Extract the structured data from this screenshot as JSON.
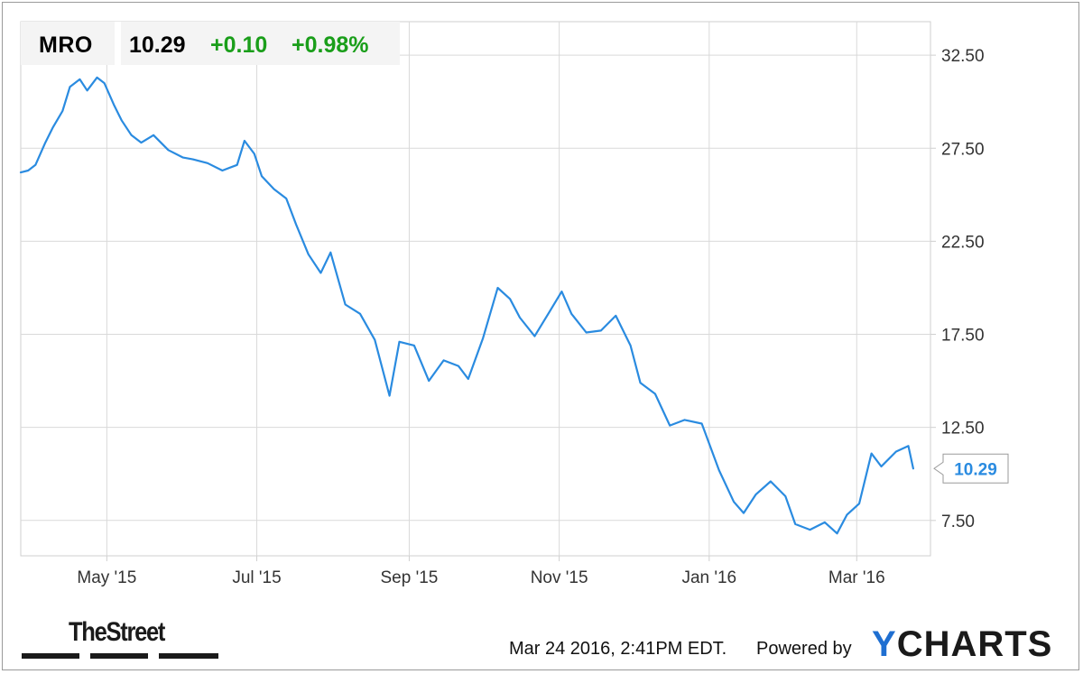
{
  "quote": {
    "ticker": "MRO",
    "price": "10.29",
    "change": "+0.10",
    "change_pct": "+0.98%",
    "up_color": "#1a9e1a"
  },
  "chart_data": {
    "type": "line",
    "title": "",
    "xlabel": "",
    "ylabel": "",
    "ylim": [
      5.6,
      34.3
    ],
    "y_ticks": [
      7.5,
      12.5,
      17.5,
      22.5,
      27.5,
      32.5
    ],
    "y_tick_labels": [
      "7.50",
      "12.50",
      "17.50",
      "22.50",
      "27.50",
      "32.50"
    ],
    "x_ticks": [
      "2015-05-01",
      "2015-07-01",
      "2015-09-01",
      "2015-11-01",
      "2016-01-01",
      "2016-03-01"
    ],
    "x_tick_labels": [
      "May '15",
      "Jul '15",
      "Sep '15",
      "Nov '15",
      "Jan '16",
      "Mar '16"
    ],
    "xlim": [
      "2015-03-27",
      "2016-03-31"
    ],
    "grid": true,
    "line_color": "#2a8be0",
    "last_value_label": "10.29",
    "series": [
      {
        "x": [
          "2015-03-27",
          "2015-03-30",
          "2015-04-02",
          "2015-04-06",
          "2015-04-09",
          "2015-04-13",
          "2015-04-16",
          "2015-04-20",
          "2015-04-23",
          "2015-04-27",
          "2015-04-30",
          "2015-05-04",
          "2015-05-07",
          "2015-05-11",
          "2015-05-15",
          "2015-05-20",
          "2015-05-26",
          "2015-06-01",
          "2015-06-05",
          "2015-06-11",
          "2015-06-17",
          "2015-06-23",
          "2015-06-26",
          "2015-06-30",
          "2015-07-03",
          "2015-07-08",
          "2015-07-13",
          "2015-07-17",
          "2015-07-22",
          "2015-07-27",
          "2015-07-31",
          "2015-08-06",
          "2015-08-12",
          "2015-08-18",
          "2015-08-24",
          "2015-08-28",
          "2015-09-03",
          "2015-09-09",
          "2015-09-15",
          "2015-09-21",
          "2015-09-25",
          "2015-10-01",
          "2015-10-07",
          "2015-10-12",
          "2015-10-16",
          "2015-10-22",
          "2015-10-28",
          "2015-11-02",
          "2015-11-06",
          "2015-11-12",
          "2015-11-18",
          "2015-11-24",
          "2015-11-30",
          "2015-12-04",
          "2015-12-10",
          "2015-12-16",
          "2015-12-22",
          "2015-12-29",
          "2016-01-05",
          "2016-01-11",
          "2016-01-15",
          "2016-01-20",
          "2016-01-26",
          "2016-02-01",
          "2016-02-05",
          "2016-02-11",
          "2016-02-17",
          "2016-02-22",
          "2016-02-26",
          "2016-03-02",
          "2016-03-07",
          "2016-03-11",
          "2016-03-17",
          "2016-03-22",
          "2016-03-24"
        ],
        "values": [
          26.2,
          26.3,
          26.6,
          27.8,
          28.6,
          29.5,
          30.8,
          31.2,
          30.6,
          31.3,
          31.0,
          29.8,
          29.0,
          28.2,
          27.8,
          28.2,
          27.4,
          27.0,
          26.9,
          26.7,
          26.3,
          26.6,
          27.9,
          27.2,
          26.0,
          25.3,
          24.8,
          23.4,
          21.8,
          20.8,
          21.9,
          19.1,
          18.6,
          17.2,
          14.2,
          17.1,
          16.9,
          15.0,
          16.1,
          15.8,
          15.1,
          17.3,
          20.0,
          19.4,
          18.4,
          17.4,
          18.7,
          19.8,
          18.6,
          17.6,
          17.7,
          18.5,
          16.9,
          14.9,
          14.3,
          12.6,
          12.9,
          12.7,
          10.2,
          8.5,
          7.9,
          8.9,
          9.6,
          8.8,
          7.3,
          7.0,
          7.4,
          6.8,
          7.8,
          8.4,
          11.1,
          10.4,
          11.2,
          11.5,
          10.29
        ]
      }
    ]
  },
  "footer": {
    "brand_left": "TheStreet",
    "timestamp": "Mar 24 2016, 2:41PM EDT.",
    "powered_by": "Powered by",
    "brand_right_y": "Y",
    "brand_right_rest": "CHARTS"
  }
}
